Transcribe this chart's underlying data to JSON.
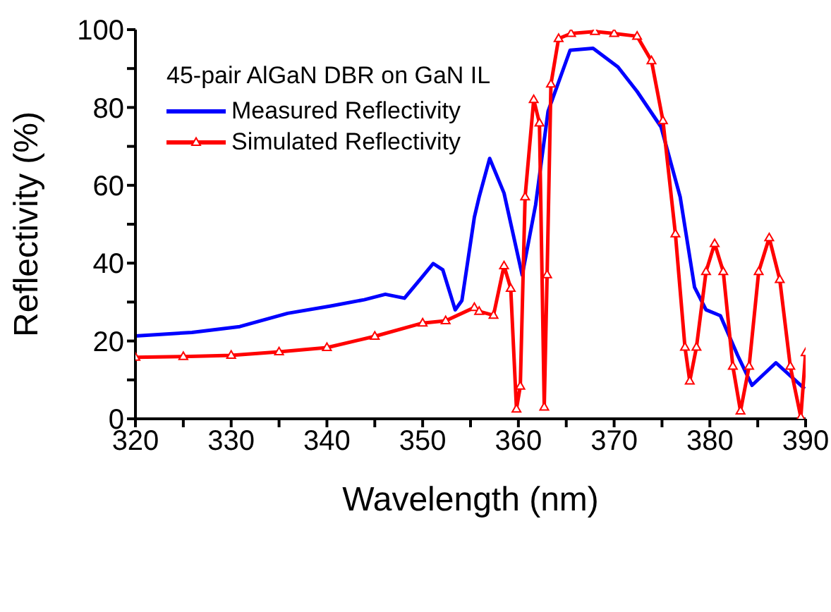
{
  "chart_data": {
    "type": "line",
    "xlabel": "Wavelength (nm)",
    "ylabel": "Reflectivity (%)",
    "legend_title": "45-pair AlGaN DBR on GaN IL",
    "legend": "top left",
    "grid": false,
    "xlim": [
      320,
      390
    ],
    "xticks": [
      320,
      {
        "value": 325,
        "label": null
      },
      330,
      {
        "value": 335,
        "label": null
      },
      340,
      {
        "value": 345,
        "label": null
      },
      350,
      {
        "value": 355,
        "label": null
      },
      360,
      {
        "value": 365,
        "label": null
      },
      370,
      {
        "value": 375,
        "label": null
      },
      380,
      {
        "value": 385,
        "label": null
      },
      390
    ],
    "ylim": [
      0,
      100
    ],
    "yticks": [
      0,
      {
        "value": 10,
        "label": null
      },
      20,
      {
        "value": 30,
        "label": null
      },
      40,
      {
        "value": 50,
        "label": null
      },
      60,
      {
        "value": 70,
        "label": null
      },
      80,
      {
        "value": 90,
        "label": null
      },
      100
    ],
    "series": [
      {
        "name": "Measured Reflectivity",
        "color": "#0000ff",
        "marker": "none",
        "line_style": "solid",
        "x": [
          320,
          325.9,
          330.9,
          335.9,
          340.4,
          343.9,
          346.1,
          348.1,
          349.9,
          351.1,
          352.1,
          353.4,
          354.1,
          355.4,
          355.9,
          357,
          358.5,
          360.4,
          361.8,
          363.1,
          365.4,
          367.8,
          370.4,
          372.4,
          374.9,
          376.9,
          378.4,
          379.6,
          381.1,
          382.9,
          384.4,
          386.9,
          389.9
        ],
        "values": [
          21.3,
          22.2,
          23.7,
          27.1,
          29,
          30.6,
          32,
          31,
          36.3,
          39.9,
          38.3,
          28,
          30.4,
          51.8,
          57,
          66.9,
          58,
          36.9,
          55,
          79,
          94.7,
          95.2,
          90.4,
          84.1,
          75,
          57,
          33.8,
          28,
          26.5,
          16.3,
          8.6,
          14.4,
          7.7
        ]
      },
      {
        "name": "Simulated Reflectivity",
        "color": "#ff0000",
        "marker": "triangle",
        "line_style": "solid",
        "x": [
          320,
          325,
          330,
          335,
          340,
          345,
          350,
          352.4,
          355.4,
          355.9,
          357.4,
          358.5,
          359.2,
          359.8,
          360.2,
          360.7,
          361.6,
          362.2,
          362.7,
          363,
          363.4,
          364.2,
          365.5,
          368,
          370,
          372.4,
          373.9,
          375.1,
          376.4,
          377.4,
          377.9,
          378.6,
          379.6,
          380.5,
          381.4,
          382.4,
          383.2,
          384.1,
          385.1,
          386.2,
          387.3,
          388.4,
          389.5,
          390
        ],
        "values": [
          15.8,
          16,
          16.3,
          17.2,
          18.3,
          21.2,
          24.6,
          25.2,
          28.6,
          27.6,
          26.6,
          39.3,
          33.5,
          2.5,
          8.4,
          57,
          82,
          76,
          3,
          37,
          86,
          97.7,
          99,
          99.5,
          99,
          98.3,
          92,
          76.6,
          47.5,
          18.4,
          9.7,
          18.4,
          37.8,
          45,
          37.8,
          13.5,
          2,
          13.5,
          37.8,
          46.5,
          35.8,
          13.5,
          0.4,
          17
        ]
      }
    ]
  }
}
